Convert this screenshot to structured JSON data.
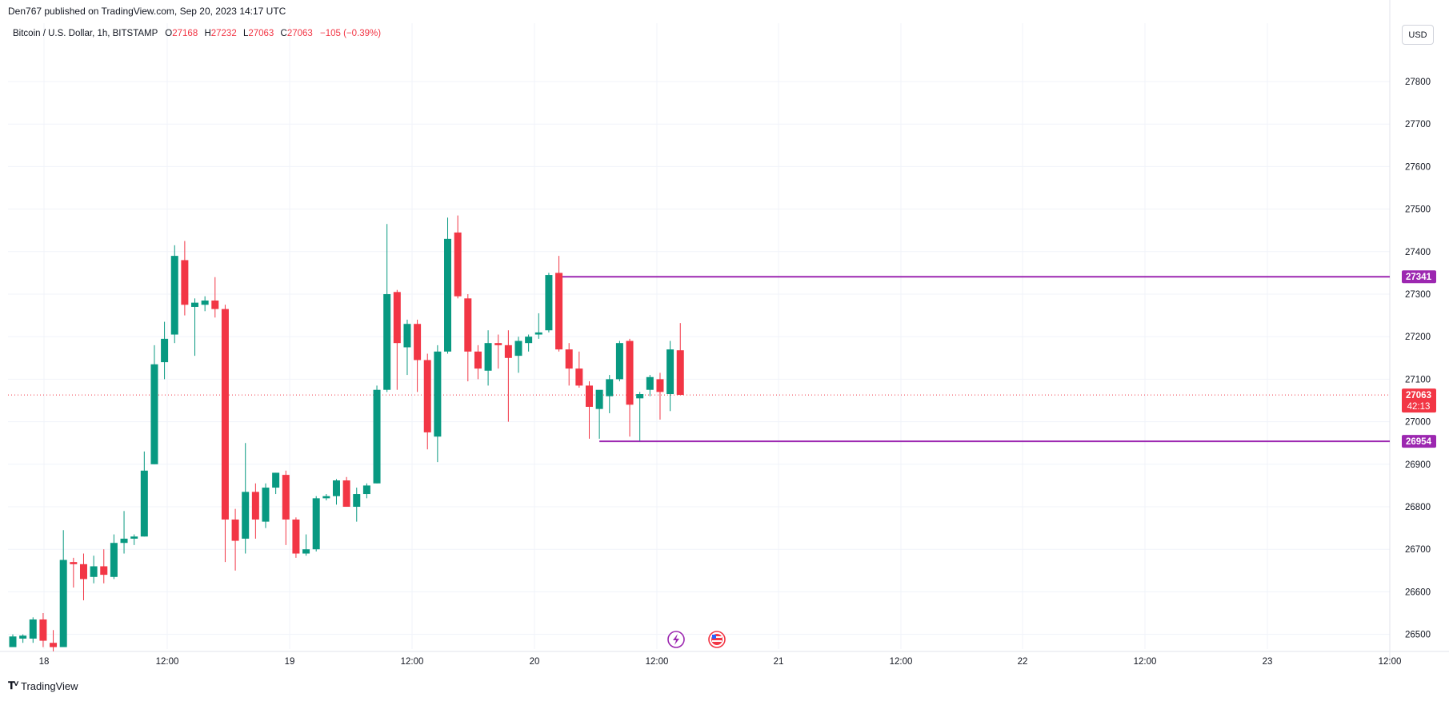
{
  "published_line": "Den767 published on TradingView.com, Sep 20, 2023 14:17 UTC",
  "header": {
    "symbol": "Bitcoin / U.S. Dollar, 1h, BITSTAMP",
    "o_label": "O",
    "o_value": "27168",
    "h_label": "H",
    "h_value": "27232",
    "l_label": "L",
    "l_value": "27063",
    "c_label": "C",
    "c_value": "27063",
    "change": "−105 (−0.39%)"
  },
  "currency_button": "USD",
  "branding": "TradingView",
  "colors": {
    "up": "#089981",
    "down": "#f23645",
    "level": "#9c27b0",
    "grid": "#f0f3fa",
    "text": "#131722",
    "price_line": "#f23645"
  },
  "chart_data": {
    "type": "candlestick",
    "symbol": "Bitcoin / U.S. Dollar",
    "interval": "1h",
    "exchange": "BITSTAMP",
    "y_ticks": [
      26500,
      26600,
      26700,
      26800,
      26900,
      27000,
      27100,
      27200,
      27300,
      27400,
      27500,
      27600,
      27700,
      27800
    ],
    "ylim": [
      26470,
      27880
    ],
    "x_labels": [
      "18",
      "12:00",
      "19",
      "12:00",
      "20",
      "12:00",
      "21",
      "12:00",
      "22",
      "12:00",
      "23",
      "12:00"
    ],
    "grid": true,
    "candles": [
      {
        "o": 26470,
        "h": 26500,
        "l": 26470,
        "c": 26495
      },
      {
        "o": 26490,
        "h": 26500,
        "l": 26480,
        "c": 26497
      },
      {
        "o": 26490,
        "h": 26540,
        "l": 26480,
        "c": 26535
      },
      {
        "o": 26535,
        "h": 26550,
        "l": 26470,
        "c": 26485
      },
      {
        "o": 26480,
        "h": 26510,
        "l": 26460,
        "c": 26470
      },
      {
        "o": 26470,
        "h": 26745,
        "l": 26470,
        "c": 26675
      },
      {
        "o": 26670,
        "h": 26680,
        "l": 26610,
        "c": 26665
      },
      {
        "o": 26665,
        "h": 26690,
        "l": 26580,
        "c": 26630
      },
      {
        "o": 26635,
        "h": 26685,
        "l": 26620,
        "c": 26660
      },
      {
        "o": 26660,
        "h": 26700,
        "l": 26620,
        "c": 26640
      },
      {
        "o": 26635,
        "h": 26735,
        "l": 26630,
        "c": 26715
      },
      {
        "o": 26715,
        "h": 26790,
        "l": 26690,
        "c": 26725
      },
      {
        "o": 26725,
        "h": 26735,
        "l": 26710,
        "c": 26730
      },
      {
        "o": 26730,
        "h": 26930,
        "l": 26730,
        "c": 26885
      },
      {
        "o": 26900,
        "h": 27180,
        "l": 26900,
        "c": 27135
      },
      {
        "o": 27140,
        "h": 27235,
        "l": 27100,
        "c": 27195
      },
      {
        "o": 27205,
        "h": 27415,
        "l": 27185,
        "c": 27390
      },
      {
        "o": 27380,
        "h": 27425,
        "l": 27250,
        "c": 27275
      },
      {
        "o": 27270,
        "h": 27290,
        "l": 27155,
        "c": 27280
      },
      {
        "o": 27275,
        "h": 27295,
        "l": 27260,
        "c": 27285
      },
      {
        "o": 27285,
        "h": 27340,
        "l": 27245,
        "c": 27265
      },
      {
        "o": 27265,
        "h": 27275,
        "l": 26670,
        "c": 26770
      },
      {
        "o": 26770,
        "h": 26795,
        "l": 26650,
        "c": 26720
      },
      {
        "o": 26725,
        "h": 26950,
        "l": 26690,
        "c": 26835
      },
      {
        "o": 26835,
        "h": 26855,
        "l": 26725,
        "c": 26770
      },
      {
        "o": 26765,
        "h": 26855,
        "l": 26750,
        "c": 26845
      },
      {
        "o": 26845,
        "h": 26880,
        "l": 26830,
        "c": 26880
      },
      {
        "o": 26875,
        "h": 26885,
        "l": 26710,
        "c": 26770
      },
      {
        "o": 26770,
        "h": 26775,
        "l": 26680,
        "c": 26690
      },
      {
        "o": 26690,
        "h": 26735,
        "l": 26685,
        "c": 26700
      },
      {
        "o": 26700,
        "h": 26825,
        "l": 26695,
        "c": 26820
      },
      {
        "o": 26820,
        "h": 26830,
        "l": 26815,
        "c": 26825
      },
      {
        "o": 26825,
        "h": 26865,
        "l": 26805,
        "c": 26862
      },
      {
        "o": 26862,
        "h": 26870,
        "l": 26800,
        "c": 26800
      },
      {
        "o": 26800,
        "h": 26845,
        "l": 26765,
        "c": 26830
      },
      {
        "o": 26830,
        "h": 26855,
        "l": 26820,
        "c": 26850
      },
      {
        "o": 26855,
        "h": 27085,
        "l": 26855,
        "c": 27075
      },
      {
        "o": 27075,
        "h": 27465,
        "l": 27070,
        "c": 27300
      },
      {
        "o": 27305,
        "h": 27310,
        "l": 27075,
        "c": 27185
      },
      {
        "o": 27175,
        "h": 27240,
        "l": 27110,
        "c": 27230
      },
      {
        "o": 27230,
        "h": 27240,
        "l": 27070,
        "c": 27145
      },
      {
        "o": 27145,
        "h": 27160,
        "l": 26935,
        "c": 26975
      },
      {
        "o": 26965,
        "h": 27180,
        "l": 26905,
        "c": 27165
      },
      {
        "o": 27165,
        "h": 27480,
        "l": 27160,
        "c": 27430
      },
      {
        "o": 27445,
        "h": 27485,
        "l": 27290,
        "c": 27295
      },
      {
        "o": 27290,
        "h": 27300,
        "l": 27095,
        "c": 27165
      },
      {
        "o": 27165,
        "h": 27180,
        "l": 27100,
        "c": 27125
      },
      {
        "o": 27120,
        "h": 27215,
        "l": 27085,
        "c": 27185
      },
      {
        "o": 27185,
        "h": 27205,
        "l": 27125,
        "c": 27180
      },
      {
        "o": 27180,
        "h": 27215,
        "l": 27000,
        "c": 27150
      },
      {
        "o": 27155,
        "h": 27200,
        "l": 27115,
        "c": 27190
      },
      {
        "o": 27185,
        "h": 27205,
        "l": 27165,
        "c": 27200
      },
      {
        "o": 27205,
        "h": 27255,
        "l": 27195,
        "c": 27210
      },
      {
        "o": 27215,
        "h": 27350,
        "l": 27210,
        "c": 27345
      },
      {
        "o": 27350,
        "h": 27390,
        "l": 27165,
        "c": 27170
      },
      {
        "o": 27170,
        "h": 27185,
        "l": 27085,
        "c": 27125
      },
      {
        "o": 27125,
        "h": 27165,
        "l": 27080,
        "c": 27085
      },
      {
        "o": 27085,
        "h": 27095,
        "l": 26960,
        "c": 27035
      },
      {
        "o": 27030,
        "h": 27070,
        "l": 26960,
        "c": 27075
      },
      {
        "o": 27060,
        "h": 27110,
        "l": 27020,
        "c": 27100
      },
      {
        "o": 27100,
        "h": 27190,
        "l": 27095,
        "c": 27185
      },
      {
        "o": 27190,
        "h": 27195,
        "l": 26965,
        "c": 27040
      },
      {
        "o": 27055,
        "h": 27070,
        "l": 26955,
        "c": 27065
      },
      {
        "o": 27075,
        "h": 27110,
        "l": 27060,
        "c": 27105
      },
      {
        "o": 27100,
        "h": 27115,
        "l": 27005,
        "c": 27070
      },
      {
        "o": 27065,
        "h": 27190,
        "l": 27025,
        "c": 27170
      },
      {
        "o": 27168,
        "h": 27232,
        "l": 27063,
        "c": 27063
      }
    ],
    "levels": [
      {
        "price": 27341,
        "label": "27341",
        "from_candle": 54
      },
      {
        "price": 26954,
        "label": "26954",
        "from_candle": 58
      }
    ],
    "last_price": {
      "value": "27063",
      "countdown": "42:13"
    }
  }
}
